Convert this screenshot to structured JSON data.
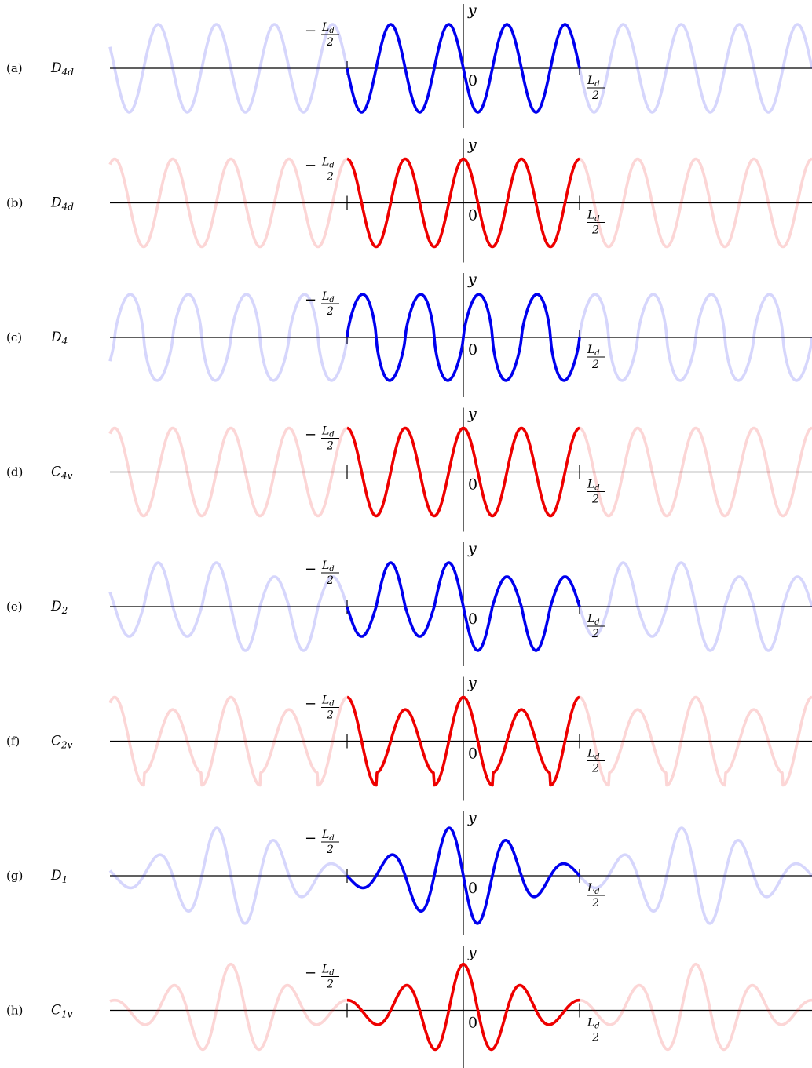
{
  "panels": [
    {
      "tag": "(a)",
      "group": "D",
      "group_sub": "4d",
      "color": "#0000ee",
      "symmetry": "odd",
      "profile": "sine"
    },
    {
      "tag": "(b)",
      "group": "D",
      "group_sub": "4d",
      "color": "#ee0000",
      "symmetry": "even",
      "profile": "cosine"
    },
    {
      "tag": "(c)",
      "group": "D",
      "group_sub": "4",
      "color": "#0000ee",
      "symmetry": "odd",
      "profile": "sawtooth"
    },
    {
      "tag": "(d)",
      "group": "C",
      "group_sub": "4v",
      "color": "#ee0000",
      "symmetry": "even",
      "profile": "cosine"
    },
    {
      "tag": "(e)",
      "group": "D",
      "group_sub": "2",
      "color": "#0000ee",
      "symmetry": "odd",
      "profile": "alternating"
    },
    {
      "tag": "(f)",
      "group": "C",
      "group_sub": "2v",
      "color": "#ee0000",
      "symmetry": "even",
      "profile": "alternating"
    },
    {
      "tag": "(g)",
      "group": "D",
      "group_sub": "1",
      "color": "#0000ee",
      "symmetry": "odd",
      "profile": "decaying"
    },
    {
      "tag": "(h)",
      "group": "C",
      "group_sub": "1v",
      "color": "#ee0000",
      "symmetry": "even",
      "profile": "decaying"
    }
  ],
  "axis": {
    "y_label": "y",
    "origin_label": "0",
    "limit_symbol": "L",
    "limit_sub": "d",
    "limit_den": "2",
    "minus": "−"
  },
  "faded_opacity": 0.16
}
